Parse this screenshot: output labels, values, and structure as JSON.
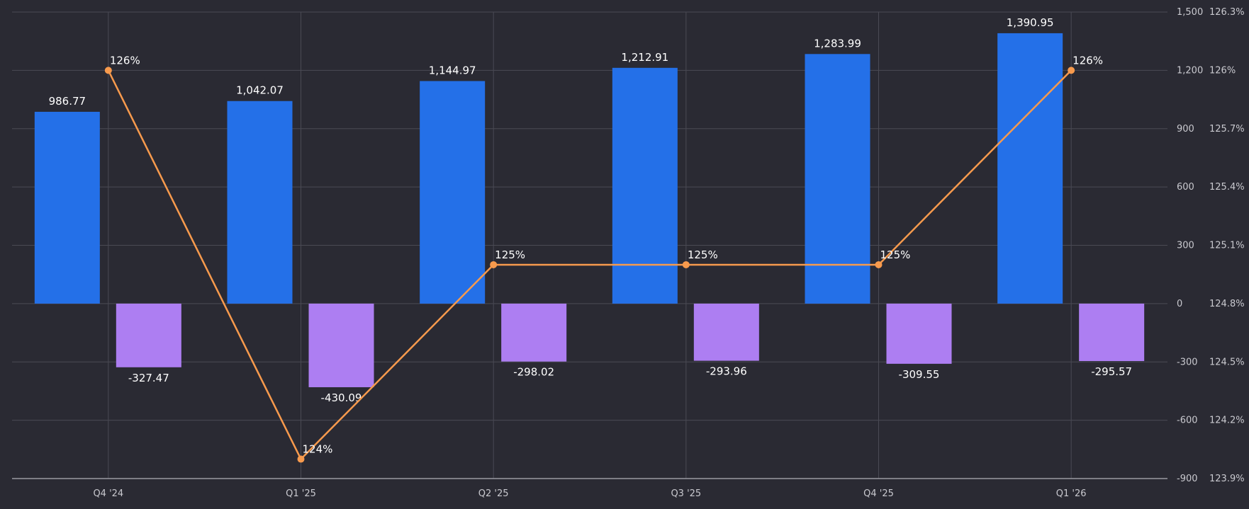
{
  "chart_data": {
    "type": "bar",
    "categories": [
      "Q4 '24",
      "Q1 '25",
      "Q2 '25",
      "Q3 '25",
      "Q4 '25",
      "Q1 '26"
    ],
    "series": [
      {
        "values": [
          986.77,
          1042.07,
          1144.97,
          1212.91,
          1283.99,
          1390.95
        ],
        "kind": "bar",
        "axis": "left",
        "color": "#2470e8"
      },
      {
        "values": [
          -327.47,
          -430.09,
          -298.02,
          -293.96,
          -309.55,
          -295.57
        ],
        "kind": "bar",
        "axis": "left",
        "color": "#ad7ef2"
      },
      {
        "values": [
          126.0,
          124.0,
          125.0,
          125.0,
          125.0,
          126.0
        ],
        "labels": [
          "126%",
          "124%",
          "125%",
          "125%",
          "125%",
          "126%"
        ],
        "kind": "line",
        "axis": "right",
        "color": "#f79a4d"
      }
    ],
    "bar_labels": [
      [
        "986.77",
        "1,042.07",
        "1,144.97",
        "1,212.91",
        "1,283.99",
        "1,390.95"
      ],
      [
        "-327.47",
        "-430.09",
        "-298.02",
        "-293.96",
        "-309.55",
        "-295.57"
      ]
    ],
    "y_left": {
      "range": [
        -900,
        1500
      ],
      "ticks": [
        "1,500",
        "1,200",
        "900",
        "600",
        "300",
        "0",
        "-300",
        "-600",
        "-900"
      ]
    },
    "y_right": {
      "range": [
        123.9,
        126.3
      ],
      "ticks": [
        "126.3%",
        "126%",
        "125.7%",
        "125.4%",
        "125.1%",
        "124.8%",
        "124.5%",
        "124.2%",
        "123.9%"
      ]
    },
    "grid": true,
    "legend": "none",
    "colors": {
      "background": "#2a2a33",
      "grid": "#4a4a54",
      "text": "#ffffff",
      "tick_text": "#c9c9cf"
    }
  }
}
